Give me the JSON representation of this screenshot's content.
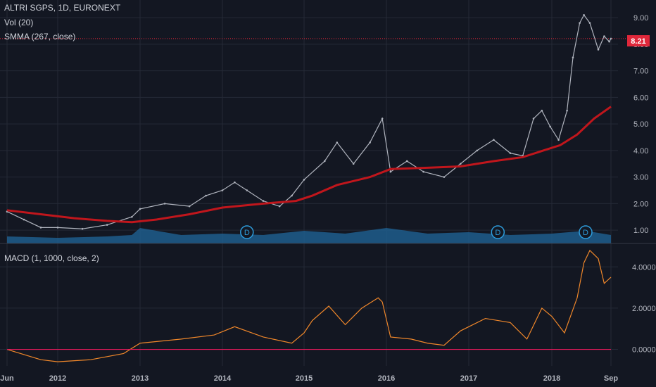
{
  "legend": {
    "symbol": "ALTRI SGPS, 1D, EURONEXT",
    "volume": "Vol (20)",
    "smma": "SMMA (267, close)",
    "macd": "MACD (1, 1000, close, 2)"
  },
  "last_price_badge": "8.21",
  "dividend_marker_label": "D",
  "colors": {
    "background": "#131722",
    "grid": "#252a37",
    "price": "#b0b4be",
    "smma": "#c0161c",
    "volume": "#1f5d8c",
    "macd": "#f0872a",
    "signal": "#e0195a",
    "badge": "#e0273a"
  },
  "chart_data": [
    {
      "type": "line",
      "title": "ALTRI SGPS, 1D, EURONEXT",
      "y_axis_side": "right",
      "x_tick_labels": [
        "Jun",
        "2012",
        "2013",
        "2014",
        "2015",
        "2016",
        "2017",
        "2018",
        "Sep"
      ],
      "y_ticks": [
        "1.00",
        "2.00",
        "3.00",
        "4.00",
        "5.00",
        "6.00",
        "7.00",
        "8.00",
        "9.00"
      ],
      "ylim": [
        0.5,
        9.4
      ],
      "grid": true,
      "series": [
        {
          "name": "ALTRI SGPS",
          "x": [
            2011.4,
            2011.6,
            2011.8,
            2012.0,
            2012.3,
            2012.6,
            2012.9,
            2013.0,
            2013.3,
            2013.6,
            2013.8,
            2014.0,
            2014.15,
            2014.3,
            2014.5,
            2014.7,
            2014.85,
            2015.0,
            2015.25,
            2015.4,
            2015.6,
            2015.8,
            2015.95,
            2016.05,
            2016.25,
            2016.45,
            2016.7,
            2016.9,
            2017.1,
            2017.3,
            2017.5,
            2017.65,
            2017.78,
            2017.88,
            2017.98,
            2018.08,
            2018.18,
            2018.25,
            2018.33,
            2018.38,
            2018.45,
            2018.55,
            2018.62,
            2018.68,
            2018.72
          ],
          "values": [
            1.7,
            1.4,
            1.1,
            1.1,
            1.05,
            1.2,
            1.5,
            1.8,
            2.0,
            1.9,
            2.3,
            2.5,
            2.8,
            2.5,
            2.1,
            1.9,
            2.3,
            2.9,
            3.6,
            4.3,
            3.5,
            4.3,
            5.2,
            3.2,
            3.6,
            3.2,
            3.0,
            3.5,
            4.0,
            4.4,
            3.9,
            3.8,
            5.2,
            5.5,
            4.9,
            4.4,
            5.5,
            7.5,
            8.8,
            9.1,
            8.8,
            7.8,
            8.3,
            8.1,
            8.21
          ]
        },
        {
          "name": "SMMA (267, close)",
          "x": [
            2011.4,
            2011.8,
            2012.2,
            2012.6,
            2012.9,
            2013.2,
            2013.6,
            2014.0,
            2014.5,
            2014.9,
            2015.1,
            2015.4,
            2015.8,
            2016.05,
            2016.5,
            2016.9,
            2017.3,
            2017.65,
            2017.9,
            2018.1,
            2018.3,
            2018.5,
            2018.72
          ],
          "values": [
            1.75,
            1.6,
            1.45,
            1.35,
            1.3,
            1.4,
            1.6,
            1.85,
            2.0,
            2.1,
            2.3,
            2.7,
            3.0,
            3.3,
            3.35,
            3.4,
            3.6,
            3.75,
            4.0,
            4.2,
            4.6,
            5.2,
            5.65
          ]
        },
        {
          "name": "Vol (20)",
          "x": [
            2011.4,
            2012.0,
            2012.6,
            2012.9,
            2013.0,
            2013.5,
            2014.0,
            2014.5,
            2015.0,
            2015.5,
            2016.0,
            2016.5,
            2017.0,
            2017.5,
            2018.0,
            2018.4,
            2018.72
          ],
          "values": [
            0.25,
            0.2,
            0.25,
            0.3,
            0.55,
            0.3,
            0.35,
            0.3,
            0.45,
            0.35,
            0.55,
            0.35,
            0.4,
            0.3,
            0.35,
            0.45,
            0.3
          ]
        }
      ],
      "dividend_markers_x": [
        2014.3,
        2017.35,
        2018.4
      ]
    },
    {
      "type": "line",
      "title": "MACD (1, 1000, close, 2)",
      "y_axis_side": "right",
      "y_ticks": [
        "0.0000",
        "2.0000",
        "4.0000"
      ],
      "ylim": [
        -0.8,
        5.0
      ],
      "grid": true,
      "series": [
        {
          "name": "MACD",
          "x": [
            2011.4,
            2011.8,
            2012.0,
            2012.4,
            2012.8,
            2013.0,
            2013.5,
            2013.9,
            2014.15,
            2014.5,
            2014.85,
            2015.0,
            2015.1,
            2015.3,
            2015.5,
            2015.7,
            2015.9,
            2015.95,
            2016.05,
            2016.3,
            2016.5,
            2016.7,
            2016.9,
            2017.2,
            2017.5,
            2017.7,
            2017.88,
            2018.0,
            2018.15,
            2018.3,
            2018.38,
            2018.45,
            2018.55,
            2018.62,
            2018.72
          ],
          "values": [
            0.0,
            -0.5,
            -0.6,
            -0.5,
            -0.2,
            0.3,
            0.5,
            0.7,
            1.1,
            0.6,
            0.3,
            0.8,
            1.4,
            2.1,
            1.2,
            2.0,
            2.5,
            2.3,
            0.6,
            0.5,
            0.3,
            0.2,
            0.9,
            1.5,
            1.3,
            0.5,
            2.0,
            1.6,
            0.8,
            2.5,
            4.2,
            4.8,
            4.4,
            3.2,
            3.5
          ]
        },
        {
          "name": "Signal",
          "x": [
            2011.4,
            2018.72
          ],
          "values": [
            0.0,
            0.0
          ]
        }
      ]
    }
  ]
}
